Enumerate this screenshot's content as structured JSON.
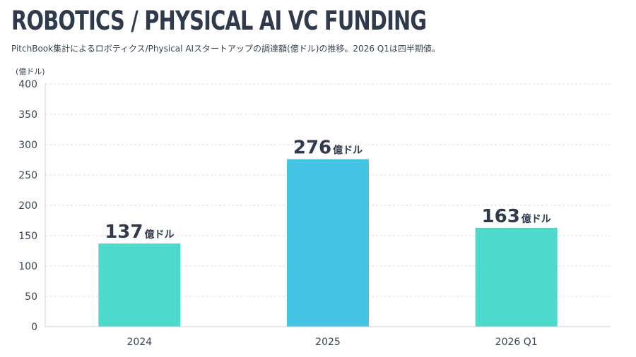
{
  "header": {
    "title": "ROBOTICS / PHYSICAL AI VC FUNDING",
    "subtitle": "PitchBook集計によるロボティクス/Physical AIスタートアップの調達額(億ドル)の推移。2026 Q1は四半期値。"
  },
  "chart_data": {
    "type": "bar",
    "title": "ROBOTICS / PHYSICAL AI VC FUNDING",
    "ylabel": "(億ドル)",
    "xlabel": "",
    "categories": [
      "2024",
      "2025",
      "2026 Q1"
    ],
    "values": [
      137,
      276,
      163
    ],
    "value_labels": [
      "137",
      "276",
      "163"
    ],
    "value_unit": "億ドル",
    "colors": [
      "#4dd9cc",
      "#45c4e6",
      "#4dd9cc"
    ],
    "ylim": [
      0,
      400
    ],
    "yticks": [
      0,
      50,
      100,
      150,
      200,
      250,
      300,
      350,
      400
    ],
    "grid": true
  }
}
